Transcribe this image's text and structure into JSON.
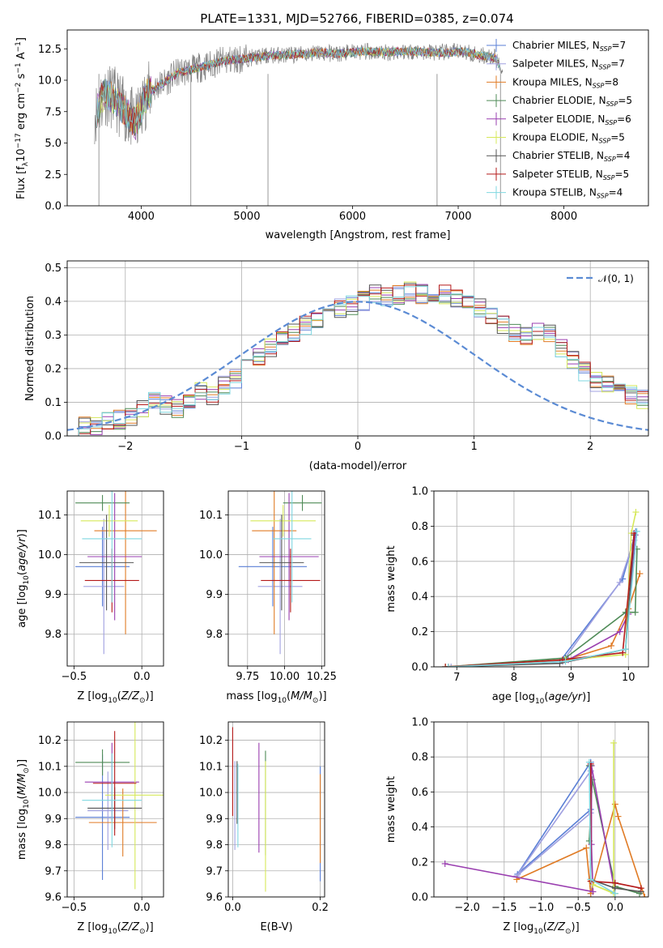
{
  "figure": {
    "title": "PLATE=1331, MJD=52766, FIBERID=0385, z=0.074"
  },
  "models": [
    {
      "name": "Chabrier MILES",
      "nssp": "7",
      "color": "#5a7fd6"
    },
    {
      "name": "Salpeter MILES",
      "nssp": "7",
      "color": "#a0a0e0"
    },
    {
      "name": "Kroupa MILES",
      "nssp": "8",
      "color": "#e07b25"
    },
    {
      "name": "Chabrier ELODIE",
      "nssp": "5",
      "color": "#4f8b57"
    },
    {
      "name": "Salpeter ELODIE",
      "nssp": "6",
      "color": "#9a3fb0"
    },
    {
      "name": "Kroupa ELODIE",
      "nssp": "5",
      "color": "#d6e85a"
    },
    {
      "name": "Chabrier STELIB",
      "nssp": "4",
      "color": "#555555"
    },
    {
      "name": "Salpeter STELIB",
      "nssp": "5",
      "color": "#b51a1a"
    },
    {
      "name": "Kroupa STELIB",
      "nssp": "4",
      "color": "#7fd7e0"
    }
  ],
  "chart_data": [
    {
      "id": "spectrum",
      "type": "line",
      "xlabel": "wavelength [Angstrom, rest frame]",
      "ylabel": "Flux [f_λ10^-17 erg cm^-2 s^-1 A^-1]",
      "xlim": [
        3300,
        8800
      ],
      "ylim": [
        0,
        14
      ],
      "xticks": [
        4000,
        5000,
        6000,
        7000,
        8000
      ],
      "yticks": [
        0.0,
        2.5,
        5.0,
        7.5,
        10.0,
        12.5
      ],
      "grid": false,
      "legend": "right",
      "data_x": [
        3580,
        3650,
        3750,
        3850,
        3950,
        4050,
        4150,
        4250,
        4350,
        4450,
        4550,
        4650,
        4750,
        4850,
        4950,
        5050,
        5150,
        5250,
        5400,
        5550,
        5700,
        5850,
        6000,
        6150,
        6300,
        6450,
        6600,
        6750,
        6900,
        7050,
        7200,
        7350,
        7400
      ],
      "data_y": [
        7.5,
        9.0,
        8.5,
        7.5,
        6.5,
        8.8,
        9.5,
        10.0,
        10.6,
        10.8,
        11.0,
        11.2,
        11.5,
        11.6,
        11.7,
        11.8,
        11.9,
        12.0,
        12.0,
        12.1,
        12.2,
        12.1,
        12.2,
        12.3,
        12.2,
        12.3,
        12.3,
        12.2,
        12.2,
        12.3,
        12.0,
        11.8,
        11.0
      ],
      "series_name_data": "data",
      "series_color_data": "#808080"
    },
    {
      "id": "residuals",
      "type": "bar",
      "xlabel": "(data-model)/error",
      "ylabel": "Normed distribution",
      "xlim": [
        -2.5,
        2.5
      ],
      "ylim": [
        0,
        0.52
      ],
      "xticks": [
        -2,
        -1,
        0,
        1,
        2
      ],
      "yticks": [
        0.0,
        0.1,
        0.2,
        0.3,
        0.4,
        0.5
      ],
      "grid": true,
      "legend": "top-right",
      "gaussian_label": "𝒩(0, 1)",
      "gaussian_color": "#5b8bd4",
      "bin_edges_start": -2.5,
      "bin_width": 0.1,
      "histogram_base": [
        0.02,
        0.03,
        0.03,
        0.04,
        0.05,
        0.06,
        0.08,
        0.1,
        0.09,
        0.08,
        0.11,
        0.13,
        0.12,
        0.15,
        0.17,
        0.2,
        0.23,
        0.26,
        0.3,
        0.31,
        0.33,
        0.35,
        0.36,
        0.38,
        0.39,
        0.4,
        0.42,
        0.41,
        0.42,
        0.43,
        0.42,
        0.41,
        0.42,
        0.41,
        0.39,
        0.38,
        0.36,
        0.33,
        0.31,
        0.3,
        0.31,
        0.3,
        0.26,
        0.23,
        0.19,
        0.16,
        0.15,
        0.14,
        0.12,
        0.11,
        0.1,
        0.09,
        0.08,
        0.07,
        0.06,
        0.05,
        0.04,
        0.04,
        0.03,
        0.02
      ]
    },
    {
      "id": "age_vs_Z",
      "type": "scatter",
      "xlabel": "Z [log10(Z/Z⊙)]",
      "ylabel": "age  [log10(age/yr)]",
      "xlim": [
        -0.55,
        0.16
      ],
      "ylim": [
        9.72,
        10.16
      ],
      "xticks": [
        -0.5,
        0.0
      ],
      "yticks": [
        9.8,
        9.9,
        10.0,
        10.1
      ],
      "grid": true,
      "points": [
        {
          "x": -0.29,
          "y": 9.97,
          "xerr": 0.2,
          "yerr": 0.1
        },
        {
          "x": -0.28,
          "y": 9.92,
          "xerr": 0.15,
          "yerr": 0.17
        },
        {
          "x": -0.12,
          "y": 10.06,
          "xerr": 0.23,
          "yerr": 0.26
        },
        {
          "x": -0.29,
          "y": 10.13,
          "xerr": 0.2,
          "yerr": 0.02
        },
        {
          "x": -0.2,
          "y": 9.995,
          "xerr": 0.2,
          "yerr": 0.16
        },
        {
          "x": -0.24,
          "y": 10.085,
          "xerr": 0.21,
          "yerr": 0.04
        },
        {
          "x": -0.26,
          "y": 9.98,
          "xerr": 0.2,
          "yerr": 0.12
        },
        {
          "x": -0.22,
          "y": 9.935,
          "xerr": 0.2,
          "yerr": 0.08
        },
        {
          "x": -0.22,
          "y": 10.04,
          "xerr": 0.22,
          "yerr": 0.16
        }
      ]
    },
    {
      "id": "age_vs_mass",
      "type": "scatter",
      "xlabel": "mass [log10(M/M⊙)]",
      "ylabel": "",
      "xlim": [
        9.62,
        10.27
      ],
      "ylim": [
        9.72,
        10.16
      ],
      "xticks": [
        9.75,
        10.0,
        10.25
      ],
      "yticks": [
        9.8,
        9.9,
        10.0,
        10.1
      ],
      "grid": true,
      "points": [
        {
          "x": 9.92,
          "y": 9.97,
          "xerr": 0.23,
          "yerr": 0.1
        },
        {
          "x": 9.97,
          "y": 9.92,
          "xerr": 0.15,
          "yerr": 0.17
        },
        {
          "x": 9.93,
          "y": 10.06,
          "xerr": 0.15,
          "yerr": 0.26
        },
        {
          "x": 10.12,
          "y": 10.13,
          "xerr": 0.13,
          "yerr": 0.02
        },
        {
          "x": 10.03,
          "y": 9.995,
          "xerr": 0.2,
          "yerr": 0.16
        },
        {
          "x": 9.99,
          "y": 10.085,
          "xerr": 0.22,
          "yerr": 0.04
        },
        {
          "x": 9.98,
          "y": 9.98,
          "xerr": 0.15,
          "yerr": 0.12
        },
        {
          "x": 10.04,
          "y": 9.935,
          "xerr": 0.2,
          "yerr": 0.08
        },
        {
          "x": 10.05,
          "y": 10.04,
          "xerr": 0.13,
          "yerr": 0.16
        }
      ]
    },
    {
      "id": "mass_weight_vs_age",
      "type": "line",
      "xlabel": "age  [log10(age/yr)]",
      "ylabel": "mass weight",
      "xlim": [
        6.6,
        10.35
      ],
      "ylim": [
        0,
        1.0
      ],
      "xticks": [
        7,
        8,
        9,
        10
      ],
      "yticks": [
        0.0,
        0.2,
        0.4,
        0.6,
        0.8,
        1.0
      ],
      "grid": true,
      "series": [
        {
          "x": [
            6.8,
            8.8,
            9.9,
            10.13
          ],
          "y": [
            0.0,
            0.03,
            0.5,
            0.77
          ]
        },
        {
          "x": [
            6.9,
            8.85,
            9.85,
            10.1
          ],
          "y": [
            0.0,
            0.03,
            0.48,
            0.72
          ]
        },
        {
          "x": [
            6.85,
            8.9,
            9.7,
            10.0,
            10.2
          ],
          "y": [
            0.0,
            0.04,
            0.12,
            0.33,
            0.53
          ]
        },
        {
          "x": [
            6.8,
            8.9,
            9.95,
            10.12,
            10.15
          ],
          "y": [
            0.0,
            0.05,
            0.31,
            0.31,
            0.67
          ]
        },
        {
          "x": [
            6.85,
            8.95,
            9.85,
            10.0,
            10.12
          ],
          "y": [
            0.0,
            0.04,
            0.2,
            0.3,
            0.75
          ]
        },
        {
          "x": [
            6.8,
            8.9,
            9.95,
            10.05,
            10.13
          ],
          "y": [
            0.0,
            0.04,
            0.07,
            0.76,
            0.88
          ]
        },
        {
          "x": [
            6.85,
            8.8,
            9.95,
            10.1
          ],
          "y": [
            0.0,
            0.02,
            0.1,
            0.75
          ]
        },
        {
          "x": [
            6.8,
            8.85,
            9.9,
            10.1
          ],
          "y": [
            0.0,
            0.04,
            0.08,
            0.76
          ]
        },
        {
          "x": [
            6.85,
            8.9,
            9.95,
            10.15
          ],
          "y": [
            0.0,
            0.03,
            0.1,
            0.77
          ]
        }
      ]
    },
    {
      "id": "mass_vs_Z",
      "type": "scatter",
      "xlabel": "Z [log10(Z/Z⊙)]",
      "ylabel": "mass [log10(M/M⊙)]",
      "xlim": [
        -0.55,
        0.16
      ],
      "ylim": [
        9.6,
        10.27
      ],
      "xticks": [
        -0.5,
        0.0
      ],
      "yticks": [
        9.6,
        9.7,
        9.8,
        9.9,
        10.0,
        10.1,
        10.2
      ],
      "grid": true,
      "points": [
        {
          "x": -0.29,
          "y": 9.905,
          "xerr": 0.2,
          "yerr": 0.24
        },
        {
          "x": -0.25,
          "y": 9.93,
          "xerr": 0.15,
          "yerr": 0.15
        },
        {
          "x": -0.14,
          "y": 9.885,
          "xerr": 0.25,
          "yerr": 0.13
        },
        {
          "x": -0.29,
          "y": 10.115,
          "xerr": 0.2,
          "yerr": 0.05
        },
        {
          "x": -0.22,
          "y": 10.04,
          "xerr": 0.2,
          "yerr": 0.15
        },
        {
          "x": -0.05,
          "y": 9.99,
          "xerr": 0.22,
          "yerr": 0.36
        },
        {
          "x": -0.2,
          "y": 9.94,
          "xerr": 0.2,
          "yerr": 0.08
        },
        {
          "x": -0.2,
          "y": 10.035,
          "xerr": 0.16,
          "yerr": 0.2
        },
        {
          "x": -0.22,
          "y": 9.97,
          "xerr": 0.22,
          "yerr": 0.18
        }
      ]
    },
    {
      "id": "mass_vs_ebv",
      "type": "scatter",
      "xlabel": "E(B-V)",
      "ylabel": "",
      "xlim": [
        -0.01,
        0.21
      ],
      "ylim": [
        9.6,
        10.27
      ],
      "xticks": [
        0.0,
        0.2
      ],
      "yticks": [
        9.6,
        9.7,
        9.8,
        9.9,
        10.0,
        10.1,
        10.2
      ],
      "grid": true,
      "points": [
        {
          "x": 0.2,
          "y": 9.88,
          "xerr": 0,
          "yerr": 0.22
        },
        {
          "x": 0.005,
          "y": 9.95,
          "xerr": 0,
          "yerr": 0.17
        },
        {
          "x": 0.2,
          "y": 9.9,
          "xerr": 0,
          "yerr": 0.17
        },
        {
          "x": 0.075,
          "y": 9.96,
          "xerr": 0,
          "yerr": 0.2
        },
        {
          "x": 0.06,
          "y": 9.98,
          "xerr": 0,
          "yerr": 0.21
        },
        {
          "x": 0.075,
          "y": 9.87,
          "xerr": 0,
          "yerr": 0.25
        },
        {
          "x": 0.01,
          "y": 10.0,
          "xerr": 0,
          "yerr": 0.12
        },
        {
          "x": 0.0,
          "y": 10.08,
          "xerr": 0,
          "yerr": 0.17
        },
        {
          "x": 0.012,
          "y": 9.95,
          "xerr": 0,
          "yerr": 0.16
        }
      ]
    },
    {
      "id": "mass_weight_vs_Z",
      "type": "line",
      "xlabel": "Z [log10(Z/Z⊙)]",
      "ylabel": "mass weight",
      "xlim": [
        -2.45,
        0.45
      ],
      "ylim": [
        0,
        1.0
      ],
      "xticks": [
        -2.0,
        -1.5,
        -1.0,
        -0.5,
        0.0
      ],
      "yticks": [
        0.0,
        0.2,
        0.4,
        0.6,
        0.8,
        1.0
      ],
      "grid": true,
      "series": [
        {
          "x": [
            -0.33,
            -0.33,
            -1.32,
            -0.33
          ],
          "y": [
            0.02,
            0.5,
            0.13,
            0.77
          ]
        },
        {
          "x": [
            -0.33,
            -1.33,
            -0.33,
            -0.33
          ],
          "y": [
            0.72,
            0.12,
            0.48,
            0.0
          ]
        },
        {
          "x": [
            -1.33,
            -0.39,
            -0.33,
            0.0,
            0.04,
            0.4
          ],
          "y": [
            0.1,
            0.28,
            0.02,
            0.53,
            0.46,
            0.0
          ]
        },
        {
          "x": [
            -0.35,
            -0.31,
            -0.35,
            0.0,
            0.33
          ],
          "y": [
            0.32,
            0.67,
            0.75,
            0.06,
            0.02
          ]
        },
        {
          "x": [
            -2.3,
            -0.3,
            -0.32,
            -0.32,
            0.0
          ],
          "y": [
            0.19,
            0.03,
            0.3,
            0.75,
            0.02
          ]
        },
        {
          "x": [
            -0.02,
            -0.02,
            -0.3,
            0.0
          ],
          "y": [
            0.88,
            0.02,
            0.07,
            0.02
          ]
        },
        {
          "x": [
            -0.33,
            -0.33,
            0.0,
            0.35
          ],
          "y": [
            0.75,
            0.1,
            0.05,
            0.03
          ]
        },
        {
          "x": [
            -0.33,
            -0.33,
            0.0,
            0.35
          ],
          "y": [
            0.76,
            0.09,
            0.08,
            0.05
          ]
        },
        {
          "x": [
            -0.35,
            -0.33,
            0.0
          ],
          "y": [
            0.77,
            0.1,
            0.02
          ]
        }
      ]
    }
  ]
}
